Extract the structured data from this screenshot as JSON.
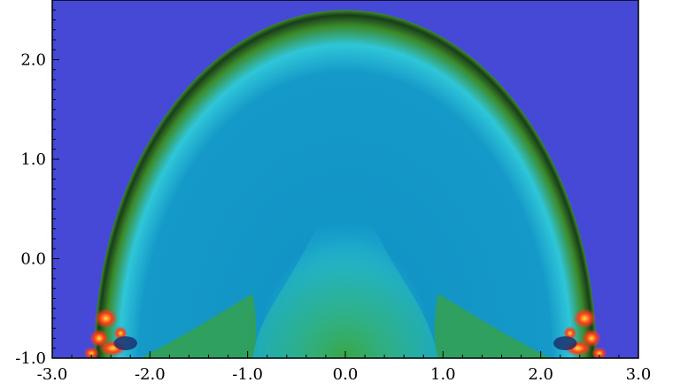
{
  "chart_data": {
    "type": "heatmap",
    "title": "",
    "xlabel": "",
    "ylabel": "",
    "xlim": [
      -3.0,
      3.0
    ],
    "ylim": [
      -1.0,
      2.6
    ],
    "x_ticks": [
      "-3.0",
      "-2.0",
      "-1.0",
      "0.0",
      "1.0",
      "2.0",
      "3.0"
    ],
    "y_ticks": [
      "-1.0",
      "0.0",
      "1.0",
      "2.0"
    ],
    "x_tick_values": [
      -3.0,
      -2.0,
      -1.0,
      0.0,
      1.0,
      2.0,
      3.0
    ],
    "y_tick_values": [
      -1.0,
      0.0,
      1.0,
      2.0
    ],
    "grid": false,
    "legend": "none",
    "colors": {
      "background_field": "#4549d6",
      "dome_interior": "#1295c6",
      "dome_shell_outer": "#1a3d1a",
      "dome_shell_mid": "#3b8a2a",
      "dome_shell_inner": "#2fc6d8",
      "plume_cyan": "#35dcec",
      "base_green": "#3aa33c",
      "edge_hot": "#ff3a1a",
      "edge_yellow": "#ffe03a"
    },
    "features": {
      "dome_center": [
        0.0,
        -1.0
      ],
      "dome_radius": 3.5,
      "shell_thickness": 0.1
    }
  }
}
